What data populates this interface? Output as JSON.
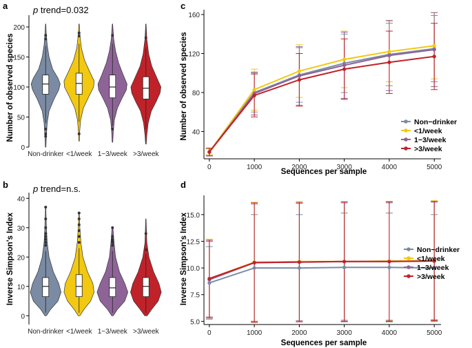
{
  "colors": {
    "Non-drinker": "#7a8ba3",
    "<1/week": "#f2c811",
    "1-3/week": "#8e6498",
    ">3/week": "#c0222a"
  },
  "chart_data": [
    {
      "panel": "a",
      "type": "violin",
      "annotation_prefix": "p",
      "annotation_suffix": " trend=0.032",
      "categories": [
        "Non-drinker",
        "<1/week",
        "1−3/week",
        ">3/week"
      ],
      "ylabel": "Number of observed species",
      "ylim": [
        0,
        215
      ],
      "yticks": [
        0,
        50,
        100,
        150,
        200
      ],
      "series": [
        {
          "name": "Non-drinker",
          "min": 0,
          "max": 205,
          "q1": 88,
          "median": 105,
          "q3": 120,
          "wlo": 40,
          "whi": 168,
          "outliers": [
            180,
            186,
            30,
            22,
            18
          ]
        },
        {
          "name": "<1/week",
          "min": 10,
          "max": 205,
          "q1": 88,
          "median": 106,
          "q3": 123,
          "wlo": 42,
          "whi": 172,
          "outliers": [
            190,
            185,
            22
          ]
        },
        {
          "name": "1-3/week",
          "min": 8,
          "max": 205,
          "q1": 82,
          "median": 100,
          "q3": 120,
          "wlo": 35,
          "whi": 172,
          "outliers": [
            186,
            30
          ]
        },
        {
          "name": ">3/week",
          "min": 5,
          "max": 205,
          "q1": 80,
          "median": 98,
          "q3": 117,
          "wlo": 30,
          "whi": 165,
          "outliers": [
            182
          ]
        }
      ],
      "shape": [
        [
          [
            0,
            0.02
          ],
          [
            20,
            0.05
          ],
          [
            40,
            0.1
          ],
          [
            60,
            0.22
          ],
          [
            80,
            0.55
          ],
          [
            95,
            0.85
          ],
          [
            105,
            0.95
          ],
          [
            115,
            0.8
          ],
          [
            130,
            0.45
          ],
          [
            150,
            0.22
          ],
          [
            170,
            0.1
          ],
          [
            190,
            0.04
          ],
          [
            205,
            0.01
          ]
        ],
        [
          [
            10,
            0.02
          ],
          [
            25,
            0.04
          ],
          [
            45,
            0.1
          ],
          [
            65,
            0.28
          ],
          [
            85,
            0.65
          ],
          [
            100,
            0.95
          ],
          [
            110,
            0.98
          ],
          [
            125,
            0.7
          ],
          [
            145,
            0.35
          ],
          [
            165,
            0.15
          ],
          [
            185,
            0.06
          ],
          [
            205,
            0.01
          ]
        ],
        [
          [
            8,
            0.02
          ],
          [
            25,
            0.05
          ],
          [
            45,
            0.12
          ],
          [
            65,
            0.32
          ],
          [
            80,
            0.6
          ],
          [
            95,
            0.9
          ],
          [
            105,
            0.95
          ],
          [
            120,
            0.7
          ],
          [
            140,
            0.4
          ],
          [
            160,
            0.2
          ],
          [
            180,
            0.08
          ],
          [
            205,
            0.01
          ]
        ],
        [
          [
            5,
            0.02
          ],
          [
            20,
            0.06
          ],
          [
            40,
            0.15
          ],
          [
            60,
            0.35
          ],
          [
            75,
            0.65
          ],
          [
            90,
            0.92
          ],
          [
            100,
            0.98
          ],
          [
            115,
            0.72
          ],
          [
            135,
            0.38
          ],
          [
            155,
            0.18
          ],
          [
            180,
            0.06
          ],
          [
            205,
            0.01
          ]
        ]
      ]
    },
    {
      "panel": "b",
      "type": "violin",
      "annotation_prefix": "p",
      "annotation_suffix": " trend=n.s.",
      "categories": [
        "Non-drinker",
        "<1/week",
        "1−3/week",
        ">3/week"
      ],
      "ylabel": "Inverse Simpson's Index",
      "ylim": [
        -3,
        41
      ],
      "yticks": [
        0,
        10,
        20,
        30,
        40
      ],
      "series": [
        {
          "name": "Non-drinker",
          "q1": 6.5,
          "median": 10,
          "q3": 13,
          "wlo": 1,
          "whi": 22,
          "outliers": [
            24,
            25,
            26,
            27,
            28,
            30,
            33,
            37
          ]
        },
        {
          "name": "<1/week",
          "q1": 6.5,
          "median": 10,
          "q3": 14,
          "wlo": 1,
          "whi": 23,
          "outliers": [
            25,
            27,
            29,
            31,
            33,
            35
          ]
        },
        {
          "name": "1-3/week",
          "q1": 6.5,
          "median": 9.5,
          "q3": 13,
          "wlo": 1,
          "whi": 22,
          "outliers": [
            24,
            25,
            25.5,
            26,
            27,
            30
          ]
        },
        {
          "name": ">3/week",
          "q1": 6.5,
          "median": 10,
          "q3": 13,
          "wlo": 1,
          "whi": 21,
          "outliers": [
            22.5,
            28
          ]
        }
      ],
      "shape": [
        [
          [
            0,
            0.05
          ],
          [
            2,
            0.3
          ],
          [
            5,
            0.8
          ],
          [
            8,
            1
          ],
          [
            11,
            0.85
          ],
          [
            15,
            0.5
          ],
          [
            20,
            0.22
          ],
          [
            25,
            0.1
          ],
          [
            30,
            0.05
          ],
          [
            37,
            0.01
          ]
        ],
        [
          [
            0,
            0.05
          ],
          [
            2,
            0.3
          ],
          [
            5,
            0.75
          ],
          [
            8,
            0.98
          ],
          [
            11,
            0.9
          ],
          [
            15,
            0.55
          ],
          [
            20,
            0.25
          ],
          [
            25,
            0.12
          ],
          [
            30,
            0.05
          ],
          [
            35,
            0.01
          ]
        ],
        [
          [
            0,
            0.05
          ],
          [
            2,
            0.3
          ],
          [
            5,
            0.8
          ],
          [
            8,
            1
          ],
          [
            11,
            0.8
          ],
          [
            15,
            0.45
          ],
          [
            20,
            0.2
          ],
          [
            25,
            0.1
          ],
          [
            30,
            0.03
          ]
        ],
        [
          [
            0,
            0.08
          ],
          [
            2,
            0.35
          ],
          [
            5,
            0.8
          ],
          [
            8,
            1
          ],
          [
            11,
            0.85
          ],
          [
            15,
            0.5
          ],
          [
            20,
            0.2
          ],
          [
            25,
            0.06
          ],
          [
            33,
            0.01
          ]
        ]
      ]
    },
    {
      "panel": "c",
      "type": "line",
      "x": [
        0,
        1000,
        2000,
        3000,
        4000,
        5000
      ],
      "xlabel": "Sequences per sample",
      "ylabel": "Number of observed species",
      "xlim": [
        -120,
        5150
      ],
      "ylim": [
        12,
        165
      ],
      "yticks": [
        40,
        80,
        120,
        160
      ],
      "series": [
        {
          "name": "Non-drinker",
          "values": [
            19,
            80,
            98,
            110,
            119,
            125
          ],
          "err": [
            3,
            20,
            28,
            30,
            32,
            34
          ]
        },
        {
          "name": "<1/week",
          "values": [
            19,
            83,
            102,
            114,
            122,
            128
          ],
          "err": [
            3,
            21,
            27,
            29,
            31,
            34
          ]
        },
        {
          "name": "1-3/week",
          "values": [
            19,
            79,
            97,
            108,
            118,
            124
          ],
          "err": [
            4,
            22,
            30,
            34,
            36,
            38
          ]
        },
        {
          "name": ">3/week",
          "values": [
            19,
            77,
            93,
            104,
            111,
            117
          ],
          "err": [
            4,
            22,
            27,
            31,
            32,
            34
          ]
        }
      ],
      "legend": [
        "Non−drinker",
        "<1/week",
        "1−3/week",
        ">3/week"
      ]
    },
    {
      "panel": "d",
      "type": "line",
      "x": [
        0,
        1000,
        2000,
        3000,
        4000,
        5000
      ],
      "xlabel": "Sequences per sample",
      "ylabel": "Inverse Simpson's Index",
      "xlim": [
        -120,
        5150
      ],
      "ylim": [
        4.7,
        16.8
      ],
      "yticks": [
        5.0,
        7.5,
        10.0,
        12.5,
        15.0
      ],
      "series": [
        {
          "name": "Non-drinker",
          "values": [
            8.6,
            10.0,
            10.0,
            10.05,
            10.05,
            10.0
          ],
          "err": [
            3.4,
            5.0,
            5.0,
            5.1,
            5.1,
            5.0
          ]
        },
        {
          "name": "<1/week",
          "values": [
            9.0,
            10.55,
            10.6,
            10.6,
            10.65,
            10.7
          ],
          "err": [
            3.7,
            5.6,
            5.6,
            5.6,
            5.6,
            5.6
          ]
        },
        {
          "name": "1-3/week",
          "values": [
            8.9,
            10.5,
            10.55,
            10.6,
            10.6,
            10.65
          ],
          "err": [
            3.6,
            5.5,
            5.5,
            5.5,
            5.5,
            5.5
          ]
        },
        {
          "name": ">3/week",
          "values": [
            9.0,
            10.5,
            10.55,
            10.6,
            10.6,
            10.65
          ],
          "err": [
            3.6,
            5.6,
            5.6,
            5.6,
            5.6,
            5.6
          ]
        }
      ],
      "legend": [
        "Non−drinker",
        "<1/week",
        "1−3/week",
        ">3/week"
      ]
    }
  ]
}
